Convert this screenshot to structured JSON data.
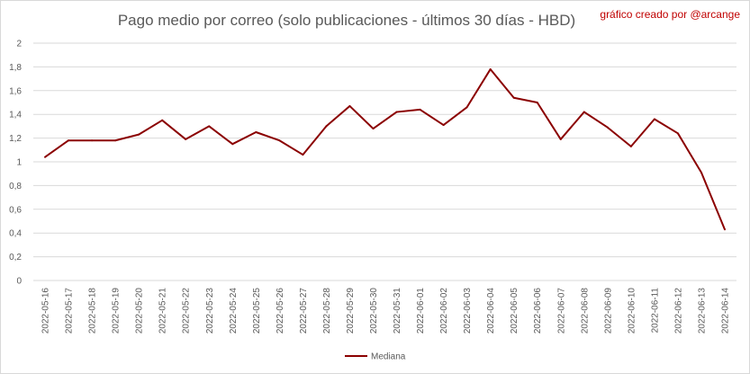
{
  "chart_data": {
    "type": "line",
    "title": "Pago medio por correo (solo publicaciones - últimos 30 días - HBD)",
    "credit": "gráfico creado por @arcange",
    "x": [
      "2022-05-16",
      "2022-05-17",
      "2022-05-18",
      "2022-05-19",
      "2022-05-20",
      "2022-05-21",
      "2022-05-22",
      "2022-05-23",
      "2022-05-24",
      "2022-05-25",
      "2022-05-26",
      "2022-05-27",
      "2022-05-28",
      "2022-05-29",
      "2022-05-30",
      "2022-05-31",
      "2022-06-01",
      "2022-06-02",
      "2022-06-03",
      "2022-06-04",
      "2022-06-05",
      "2022-06-06",
      "2022-06-07",
      "2022-06-08",
      "2022-06-09",
      "2022-06-10",
      "2022-06-11",
      "2022-06-12",
      "2022-06-13",
      "2022-06-14"
    ],
    "series": [
      {
        "name": "Mediana",
        "color": "#8b0000",
        "values": [
          1.04,
          1.18,
          1.18,
          1.18,
          1.23,
          1.35,
          1.19,
          1.3,
          1.15,
          1.25,
          1.18,
          1.06,
          1.3,
          1.47,
          1.28,
          1.42,
          1.44,
          1.31,
          1.46,
          1.78,
          1.54,
          1.5,
          1.19,
          1.42,
          1.29,
          1.13,
          1.36,
          1.24,
          0.91,
          0.43
        ]
      }
    ],
    "ylim": [
      0,
      2
    ],
    "yticks": [
      "0",
      "0,2",
      "0,4",
      "0,6",
      "0,8",
      "1",
      "1,2",
      "1,4",
      "1,6",
      "1,8",
      "2"
    ],
    "ytick_values": [
      0,
      0.2,
      0.4,
      0.6,
      0.8,
      1,
      1.2,
      1.4,
      1.6,
      1.8,
      2
    ],
    "grid": true,
    "legend_position": "bottom"
  }
}
